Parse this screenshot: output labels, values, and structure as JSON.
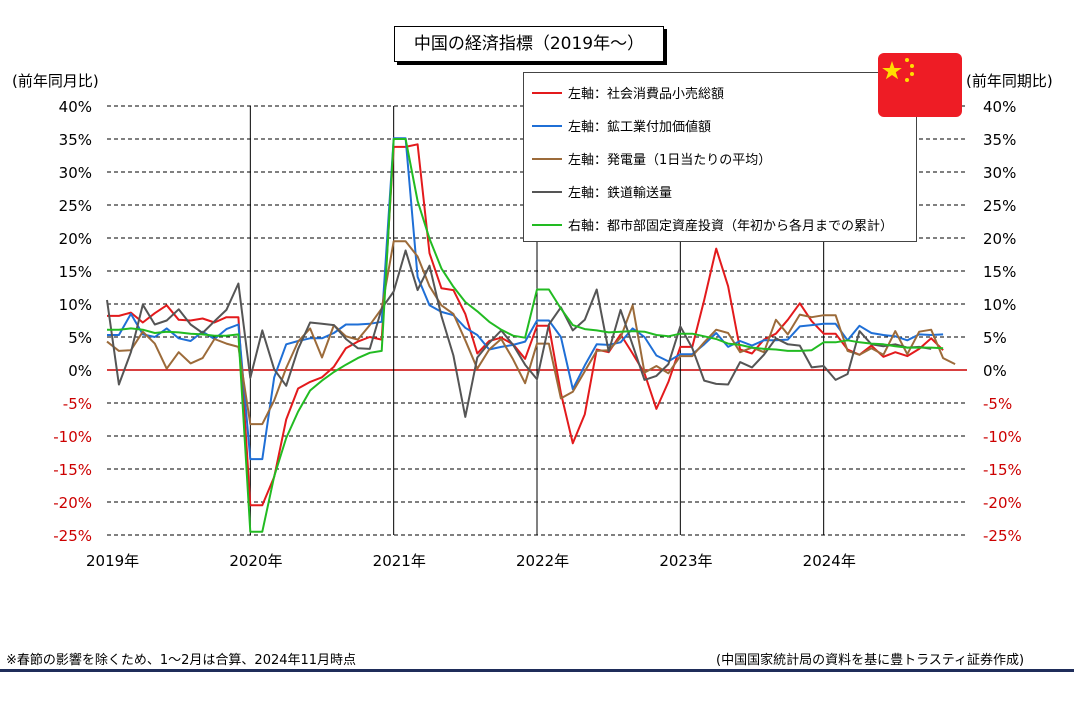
{
  "title": "中国の経済指標（2019年～）",
  "left_axis_caption": "(前年同月比)",
  "right_axis_caption": "(前年同期比)",
  "footnote_left": "※春節の影響を除くため、1～2月は合算、2024年11月時点",
  "footnote_right": "(中国国家統計局の資料を基に豊トラスティ証券作成)",
  "flag_icon": "china-flag-icon",
  "chart_data": {
    "type": "line",
    "x_ticks": [
      "2019年",
      "2020年",
      "2021年",
      "2022年",
      "2023年",
      "2024年"
    ],
    "y_ticks_left": [
      "40%",
      "35%",
      "30%",
      "25%",
      "20%",
      "15%",
      "10%",
      "5%",
      "0%",
      "-5%",
      "-10%",
      "-15%",
      "-20%",
      "-25%"
    ],
    "y_ticks_right": [
      "40%",
      "35%",
      "30%",
      "25%",
      "20%",
      "15%",
      "10%",
      "5%",
      "0%",
      "-5%",
      "-10%",
      "-15%",
      "-20%",
      "-25%"
    ],
    "ylim": [
      -25,
      40
    ],
    "x_start": 2019.0,
    "x_step": 0.0833333,
    "grid": true,
    "zero_line_color": "#cc0000",
    "negative_tick_color": "#cc0000",
    "legend_placement": "top-right",
    "series": [
      {
        "name": "左軸：社会消費品小売総額",
        "color": "#e31a1c",
        "values": [
          8.2,
          8.2,
          8.7,
          7.2,
          8.6,
          9.8,
          7.6,
          7.5,
          7.8,
          7.2,
          8.0,
          8.0,
          -20.5,
          -20.5,
          -16.2,
          -7.5,
          -2.8,
          -1.8,
          -1.1,
          0.5,
          3.3,
          4.3,
          5.0,
          4.6,
          33.8,
          33.8,
          34.2,
          17.7,
          12.4,
          12.1,
          8.5,
          2.5,
          4.4,
          4.9,
          3.9,
          1.7,
          6.7,
          6.7,
          -3.5,
          -11.1,
          -6.7,
          3.1,
          2.7,
          5.4,
          2.5,
          -0.5,
          -5.9,
          -1.8,
          3.5,
          3.5,
          10.6,
          18.4,
          12.7,
          3.1,
          2.5,
          4.6,
          5.5,
          7.6,
          10.1,
          7.4,
          5.5,
          5.5,
          3.1,
          2.3,
          3.7,
          2.0,
          2.7,
          2.1,
          3.2,
          4.8,
          3.0
        ]
      },
      {
        "name": "左軸：鉱工業付加価値額",
        "color": "#1f6fd6",
        "values": [
          5.3,
          5.3,
          8.5,
          5.4,
          5.0,
          6.3,
          4.8,
          4.4,
          5.8,
          4.7,
          6.2,
          6.9,
          -13.5,
          -13.5,
          -1.1,
          3.9,
          4.4,
          4.8,
          4.8,
          5.6,
          6.9,
          6.9,
          7.0,
          7.3,
          35.1,
          35.1,
          14.1,
          9.8,
          8.8,
          8.3,
          6.4,
          5.3,
          3.1,
          3.5,
          3.8,
          4.3,
          7.5,
          7.5,
          5.0,
          -2.9,
          0.7,
          3.9,
          3.8,
          4.2,
          6.3,
          5.0,
          2.2,
          1.3,
          2.4,
          2.4,
          3.9,
          5.6,
          3.5,
          4.4,
          3.7,
          4.5,
          4.5,
          4.6,
          6.6,
          6.8,
          7.0,
          7.0,
          4.5,
          6.7,
          5.6,
          5.3,
          5.1,
          4.5,
          5.4,
          5.3,
          5.4
        ]
      },
      {
        "name": "左軸：発電量（1日当たりの平均）",
        "color": "#9c6b3a",
        "values": [
          4.3,
          2.9,
          3.0,
          5.8,
          4.0,
          0.2,
          2.7,
          1.0,
          1.8,
          4.7,
          4.0,
          3.5,
          -8.2,
          -8.2,
          -4.6,
          0.3,
          4.3,
          6.3,
          1.9,
          6.8,
          5.1,
          4.6,
          6.8,
          9.3,
          19.5,
          19.5,
          17.2,
          12.7,
          9.8,
          8.5,
          4.5,
          0.2,
          3.1,
          4.7,
          1.6,
          -2.0,
          4.0,
          4.0,
          -4.3,
          -3.3,
          -0.2,
          2.9,
          3.0,
          4.9,
          9.8,
          -0.4,
          0.6,
          -0.5,
          2.1,
          2.1,
          4.2,
          6.1,
          5.6,
          2.7,
          3.4,
          2.7,
          7.6,
          5.4,
          8.4,
          8.0,
          8.3,
          8.3,
          2.9,
          2.3,
          3.3,
          2.3,
          5.9,
          2.4,
          5.8,
          6.1,
          1.8,
          0.9
        ]
      },
      {
        "name": "左軸：鉄道輸送量",
        "color": "#555555",
        "values": [
          10.6,
          -2.2,
          2.7,
          9.9,
          6.9,
          7.5,
          9.2,
          6.9,
          5.6,
          7.4,
          9.1,
          13.1,
          -1.2,
          6.0,
          0.1,
          -2.4,
          3.2,
          7.2,
          7.0,
          6.8,
          4.7,
          3.3,
          3.2,
          9.3,
          11.9,
          18.1,
          12.1,
          15.8,
          8.2,
          2.2,
          -7.1,
          1.9,
          4.1,
          6.0,
          3.8,
          0.8,
          -1.4,
          6.9,
          9.5,
          6.0,
          7.6,
          12.2,
          2.8,
          9.1,
          3.8,
          -1.5,
          -0.9,
          0.9,
          6.6,
          3.3,
          -1.6,
          -2.1,
          -2.2,
          1.2,
          0.4,
          2.3,
          4.8,
          3.9,
          3.7,
          0.4,
          0.6,
          -1.5,
          -0.6,
          5.9,
          3.9,
          3.6,
          3.9,
          3.4,
          3.5,
          3.2
        ]
      },
      {
        "name": "右軸：都市部固定資産投資（年初から各月までの累計）",
        "color": "#22bb22",
        "values": [
          6.1,
          6.1,
          6.3,
          6.1,
          5.6,
          5.8,
          5.7,
          5.5,
          5.4,
          5.2,
          5.2,
          5.4,
          -24.5,
          -24.5,
          -16.1,
          -10.3,
          -6.3,
          -3.1,
          -1.6,
          -0.3,
          0.8,
          1.8,
          2.6,
          2.9,
          35.0,
          35.0,
          25.6,
          19.9,
          15.4,
          12.6,
          10.3,
          8.9,
          7.3,
          6.1,
          5.2,
          4.9,
          12.2,
          12.2,
          9.3,
          6.8,
          6.2,
          6.0,
          5.7,
          5.8,
          5.9,
          5.8,
          5.3,
          5.1,
          5.5,
          5.5,
          5.1,
          4.7,
          4.0,
          3.8,
          3.4,
          3.2,
          3.1,
          2.9,
          2.9,
          3.0,
          4.2,
          4.2,
          4.5,
          4.2,
          4.0,
          3.9,
          3.6,
          3.4,
          3.4,
          3.4,
          3.3
        ]
      }
    ]
  }
}
